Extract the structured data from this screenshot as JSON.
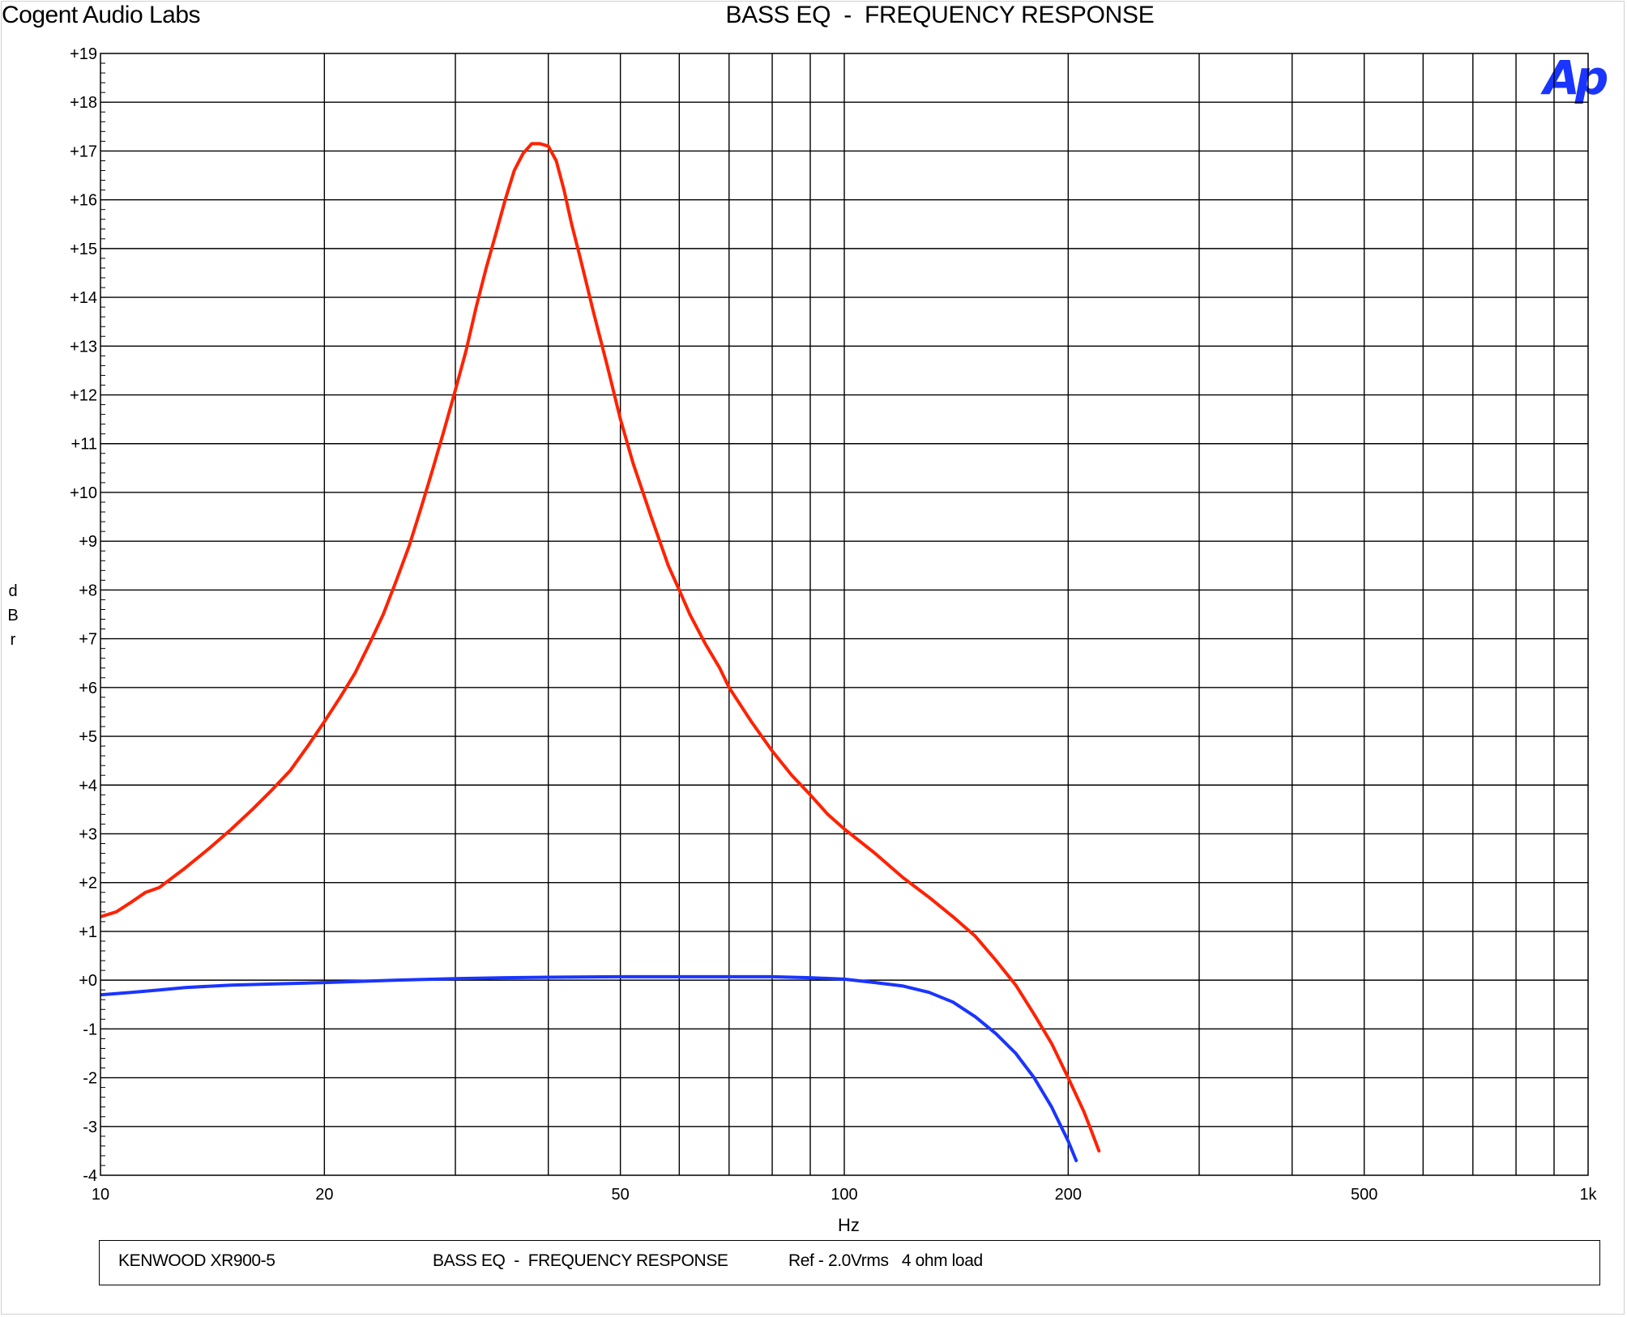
{
  "header": {
    "company": "Cogent Audio Labs",
    "title": "BASS EQ  -  FREQUENCY RESPONSE"
  },
  "logo_text": "Ap",
  "footer": {
    "model": "KENWOOD XR900-5",
    "title": "BASS EQ  -  FREQUENCY RESPONSE",
    "ref": "Ref - 2.0Vrms   4 ohm load"
  },
  "chart_data": {
    "type": "line",
    "title": "BASS EQ  -  FREQUENCY RESPONSE",
    "xlabel": "Hz",
    "ylabel": "dBr",
    "xscale": "log",
    "xlim": [
      10,
      1000
    ],
    "ylim": [
      -4,
      19
    ],
    "grid": true,
    "x_ticks": [
      {
        "value": 10,
        "label": "10"
      },
      {
        "value": 20,
        "label": "20"
      },
      {
        "value": 50,
        "label": "50"
      },
      {
        "value": 100,
        "label": "100"
      },
      {
        "value": 200,
        "label": "200"
      },
      {
        "value": 500,
        "label": "500"
      },
      {
        "value": 1000,
        "label": "1k"
      }
    ],
    "y_ticks": [
      {
        "value": 19,
        "label": "+19"
      },
      {
        "value": 18,
        "label": "+18"
      },
      {
        "value": 17,
        "label": "+17"
      },
      {
        "value": 16,
        "label": "+16"
      },
      {
        "value": 15,
        "label": "+15"
      },
      {
        "value": 14,
        "label": "+14"
      },
      {
        "value": 13,
        "label": "+13"
      },
      {
        "value": 12,
        "label": "+12"
      },
      {
        "value": 11,
        "label": "+11"
      },
      {
        "value": 10,
        "label": "+10"
      },
      {
        "value": 9,
        "label": "+9"
      },
      {
        "value": 8,
        "label": "+8"
      },
      {
        "value": 7,
        "label": "+7"
      },
      {
        "value": 6,
        "label": "+6"
      },
      {
        "value": 5,
        "label": "+5"
      },
      {
        "value": 4,
        "label": "+4"
      },
      {
        "value": 3,
        "label": "+3"
      },
      {
        "value": 2,
        "label": "+2"
      },
      {
        "value": 1,
        "label": "+1"
      },
      {
        "value": 0,
        "label": "+0"
      },
      {
        "value": -1,
        "label": "-1"
      },
      {
        "value": -2,
        "label": "-2"
      },
      {
        "value": -3,
        "label": "-3"
      },
      {
        "value": -4,
        "label": "-4"
      }
    ],
    "series": [
      {
        "color": "#ff2200",
        "x": [
          10,
          10.5,
          11,
          11.5,
          12,
          13,
          14,
          15,
          16,
          17,
          18,
          19,
          20,
          21,
          22,
          23,
          24,
          25,
          26,
          27,
          28,
          29,
          30,
          31,
          32,
          33,
          34,
          35,
          36,
          37,
          38,
          39,
          40,
          41,
          42,
          43,
          44,
          45,
          46,
          48,
          50,
          52,
          55,
          58,
          60,
          62,
          65,
          68,
          70,
          75,
          80,
          85,
          90,
          95,
          100,
          110,
          120,
          130,
          140,
          150,
          160,
          170,
          180,
          190,
          200,
          210,
          215,
          220
        ],
        "y": [
          1.3,
          1.4,
          1.6,
          1.8,
          1.9,
          2.3,
          2.7,
          3.1,
          3.5,
          3.9,
          4.3,
          4.8,
          5.3,
          5.8,
          6.3,
          6.9,
          7.5,
          8.2,
          8.9,
          9.7,
          10.5,
          11.3,
          12.1,
          12.9,
          13.8,
          14.6,
          15.3,
          16.0,
          16.6,
          16.95,
          17.15,
          17.15,
          17.1,
          16.8,
          16.2,
          15.5,
          14.9,
          14.3,
          13.7,
          12.6,
          11.5,
          10.6,
          9.5,
          8.5,
          8.0,
          7.5,
          6.9,
          6.4,
          6.0,
          5.3,
          4.7,
          4.2,
          3.8,
          3.4,
          3.1,
          2.6,
          2.1,
          1.7,
          1.3,
          0.9,
          0.4,
          -0.1,
          -0.7,
          -1.3,
          -2.0,
          -2.7,
          -3.1,
          -3.5
        ]
      },
      {
        "color": "#1a35ff",
        "x": [
          10,
          11,
          12,
          13,
          15,
          17,
          20,
          25,
          30,
          35,
          40,
          50,
          60,
          70,
          80,
          90,
          100,
          110,
          120,
          130,
          140,
          150,
          160,
          170,
          180,
          190,
          200,
          205
        ],
        "y": [
          -0.3,
          -0.25,
          -0.2,
          -0.15,
          -0.1,
          -0.08,
          -0.05,
          0.0,
          0.03,
          0.05,
          0.06,
          0.07,
          0.07,
          0.07,
          0.07,
          0.05,
          0.02,
          -0.05,
          -0.12,
          -0.25,
          -0.45,
          -0.75,
          -1.1,
          -1.5,
          -2.0,
          -2.6,
          -3.3,
          -3.7
        ]
      }
    ]
  }
}
